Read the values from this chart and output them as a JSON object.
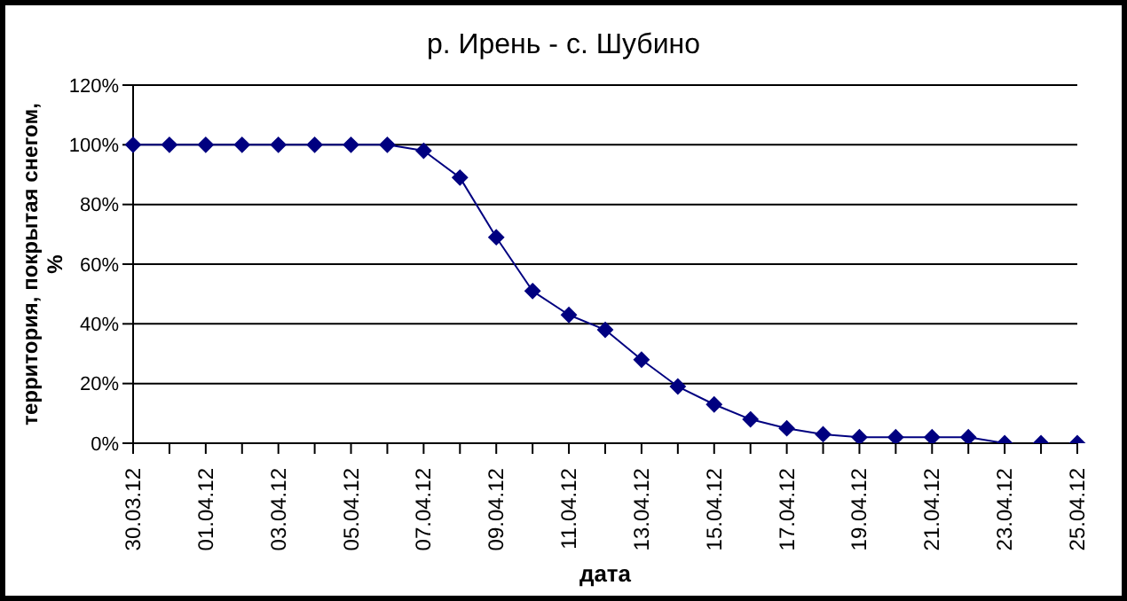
{
  "chart_data": {
    "type": "line",
    "title": "р. Ирень - с. Шубино",
    "xlabel": "дата",
    "ylabel": "территория, покрытая снегом, %",
    "categories": [
      "30.03.12",
      null,
      "01.04.12",
      null,
      "03.04.12",
      null,
      "05.04.12",
      null,
      "07.04.12",
      null,
      "09.04.12",
      null,
      "11.04.12",
      null,
      "13.04.12",
      null,
      "15.04.12",
      null,
      "17.04.12",
      null,
      "19.04.12",
      null,
      "21.04.12",
      null,
      "23.04.12",
      null,
      "25.04.12"
    ],
    "series": [
      {
        "color": "#000080",
        "values": [
          100,
          100,
          100,
          100,
          100,
          100,
          100,
          100,
          98,
          89,
          69,
          51,
          43,
          38,
          28,
          19,
          13,
          8,
          5,
          3,
          2,
          2,
          2,
          2,
          0,
          0,
          0
        ]
      }
    ],
    "ylim": [
      0,
      120
    ],
    "yticks": [
      {
        "value": 0,
        "label": "0%"
      },
      {
        "value": 20,
        "label": "20%"
      },
      {
        "value": 40,
        "label": "40%"
      },
      {
        "value": 60,
        "label": "60%"
      },
      {
        "value": 80,
        "label": "80%"
      },
      {
        "value": 100,
        "label": "100%"
      },
      {
        "value": 120,
        "label": "120%"
      }
    ],
    "grid": "y",
    "legend": false,
    "marker": "diamond",
    "line_style": "solid"
  }
}
